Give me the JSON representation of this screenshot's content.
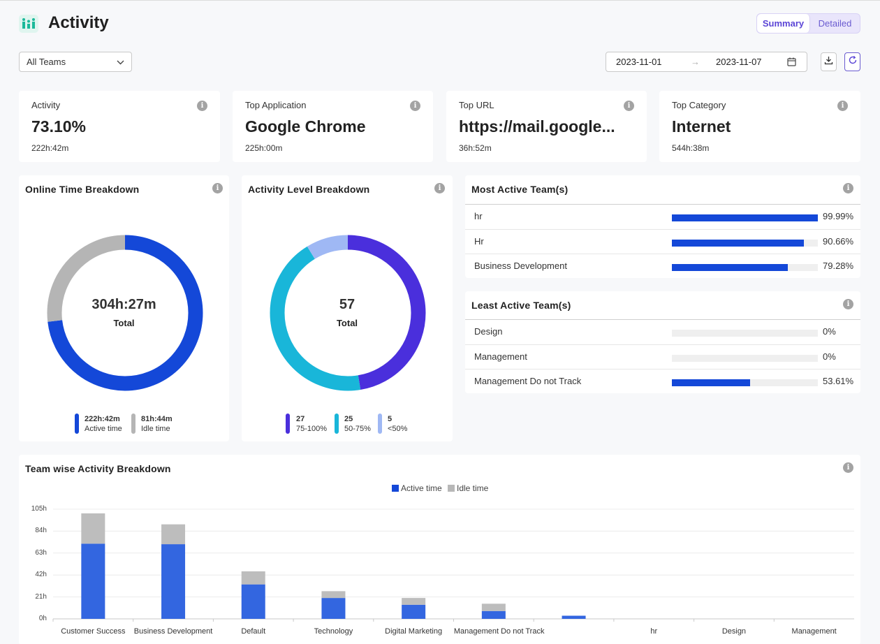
{
  "header": {
    "title": "Activity",
    "summary_label": "Summary",
    "detailed_label": "Detailed"
  },
  "filters": {
    "team": "All Teams",
    "date_start": "2023-11-01",
    "date_end": "2023-11-07",
    "arrow": "→"
  },
  "stats": [
    {
      "label": "Activity",
      "value": "73.10%",
      "sub": "222h:42m"
    },
    {
      "label": "Top Application",
      "value": "Google Chrome",
      "sub": "225h:00m"
    },
    {
      "label": "Top URL",
      "value": "https://mail.google...",
      "sub": "36h:52m"
    },
    {
      "label": "Top Category",
      "value": "Internet",
      "sub": "544h:38m"
    }
  ],
  "online_time": {
    "title": "Online Time Breakdown",
    "center_value": "304h:27m",
    "center_label": "Total",
    "legend": [
      {
        "value": "222h:42m",
        "label": "Active time",
        "color": "#1448d8",
        "fraction": 0.7315
      },
      {
        "value": "81h:44m",
        "label": "Idle time",
        "color": "#b5b5b5",
        "fraction": 0.2685
      }
    ]
  },
  "activity_level": {
    "title": "Activity Level Breakdown",
    "center_value": "57",
    "center_label": "Total",
    "legend": [
      {
        "value": "27",
        "label": "75-100%",
        "color": "#4a2fdc",
        "count": 27
      },
      {
        "value": "25",
        "label": "50-75%",
        "color": "#19b6d9",
        "count": 25
      },
      {
        "value": "5",
        "label": "<50%",
        "color": "#9fb8f4",
        "count": 5
      }
    ]
  },
  "most_active": {
    "title": "Most Active Team(s)",
    "rows": [
      {
        "name": "hr",
        "pct": "99.99%",
        "value": 99.99
      },
      {
        "name": "Hr",
        "pct": "90.66%",
        "value": 90.66
      },
      {
        "name": "Business Development",
        "pct": "79.28%",
        "value": 79.28
      }
    ]
  },
  "least_active": {
    "title": "Least Active Team(s)",
    "rows": [
      {
        "name": "Design",
        "pct": "0%",
        "value": 0
      },
      {
        "name": "Management",
        "pct": "0%",
        "value": 0
      },
      {
        "name": "Management Do not Track",
        "pct": "53.61%",
        "value": 53.61
      }
    ]
  },
  "team_chart": {
    "title": "Team wise Activity Breakdown",
    "legend_active": "Active time",
    "legend_idle": "Idle time"
  },
  "chart_data": {
    "type": "bar",
    "stacked": true,
    "categories": [
      "Customer Success",
      "Business Development",
      "Default",
      "Technology",
      "Digital Marketing",
      "Management Do not Track",
      "",
      "hr",
      "Design",
      "Management"
    ],
    "series": [
      {
        "name": "Active time",
        "color": "#3366e0",
        "values": [
          72,
          71.5,
          33,
          20,
          13.5,
          7.5,
          3,
          0,
          0,
          0
        ]
      },
      {
        "name": "Idle time",
        "color": "#bdbdbd",
        "values": [
          29,
          19,
          12.5,
          6.5,
          6.5,
          7,
          0,
          0,
          0,
          0
        ]
      }
    ],
    "yticks": [
      "105h",
      "84h",
      "63h",
      "42h",
      "21h",
      "0h"
    ],
    "ylim": [
      0,
      105
    ],
    "grid": true,
    "legend_position": "top-center"
  },
  "icons": {
    "info": "i",
    "download": "download-icon",
    "refresh": "refresh-icon",
    "calendar": "calendar-icon",
    "chevron": "chevron-down-icon"
  },
  "colors": {
    "accent": "#5b45d6",
    "primary_bar": "#1448d8"
  }
}
